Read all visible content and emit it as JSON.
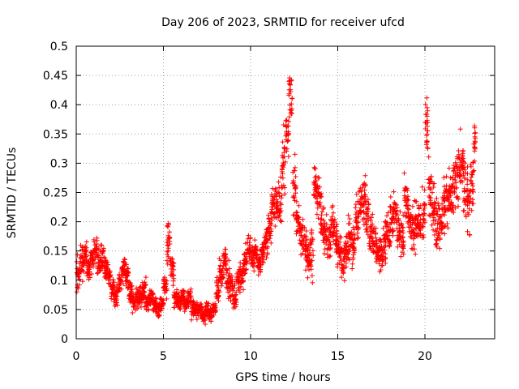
{
  "chart_data": {
    "type": "scatter",
    "title": "Day 206 of 2023, SRMTID for receiver ufcd",
    "xlabel": "GPS time / hours",
    "ylabel": "SRMTID / TECUs",
    "xlim": [
      0,
      24.0
    ],
    "ylim": [
      0,
      0.5
    ],
    "xticks": [
      0,
      5,
      10,
      15,
      20
    ],
    "xtick_labels": [
      "0",
      "5",
      "10",
      "15",
      "20"
    ],
    "yticks": [
      0,
      0.05,
      0.1,
      0.15,
      0.2,
      0.25,
      0.3,
      0.35,
      0.4,
      0.45,
      0.5
    ],
    "ytick_labels": [
      "0",
      "0.05",
      "0.1",
      "0.15",
      "0.2",
      "0.25",
      "0.3",
      "0.35",
      "0.4",
      "0.45",
      "0.5"
    ],
    "grid": true,
    "marker": "plus",
    "color": "#ff0000",
    "series": [
      {
        "name": "SRMTID",
        "x": [
          0.0,
          0.2,
          0.4,
          0.6,
          0.8,
          1.0,
          1.2,
          1.4,
          1.6,
          1.8,
          2.0,
          2.2,
          2.4,
          2.6,
          2.8,
          3.0,
          3.2,
          3.4,
          3.6,
          3.8,
          4.0,
          4.2,
          4.4,
          4.6,
          4.8,
          5.0,
          5.2,
          5.4,
          5.6,
          5.8,
          6.0,
          6.2,
          6.4,
          6.6,
          6.8,
          7.0,
          7.2,
          7.4,
          7.6,
          7.8,
          8.0,
          8.2,
          8.4,
          8.6,
          8.8,
          9.0,
          9.2,
          9.4,
          9.6,
          9.8,
          10.0,
          10.2,
          10.4,
          10.6,
          10.8,
          11.0,
          11.2,
          11.4,
          11.6,
          11.8,
          12.0,
          12.2,
          12.4,
          12.6,
          12.8,
          13.0,
          13.2,
          13.4,
          13.6,
          13.8,
          14.0,
          14.2,
          14.4,
          14.6,
          14.8,
          15.0,
          15.2,
          15.4,
          15.6,
          15.8,
          16.0,
          16.2,
          16.4,
          16.6,
          16.8,
          17.0,
          17.2,
          17.4,
          17.6,
          17.8,
          18.0,
          18.2,
          18.4,
          18.6,
          18.8,
          19.0,
          19.2,
          19.4,
          19.6,
          19.8,
          20.0,
          20.2,
          20.4,
          20.6,
          20.8,
          21.0,
          21.2,
          21.4,
          21.6,
          21.8,
          22.0,
          22.2,
          22.4,
          22.6,
          22.8
        ],
        "y": [
          0.11,
          0.13,
          0.14,
          0.12,
          0.14,
          0.15,
          0.13,
          0.14,
          0.12,
          0.1,
          0.08,
          0.07,
          0.1,
          0.12,
          0.11,
          0.08,
          0.06,
          0.07,
          0.07,
          0.08,
          0.06,
          0.07,
          0.06,
          0.05,
          0.06,
          0.09,
          0.16,
          0.12,
          0.07,
          0.06,
          0.07,
          0.06,
          0.07,
          0.05,
          0.05,
          0.05,
          0.04,
          0.05,
          0.04,
          0.05,
          0.08,
          0.11,
          0.13,
          0.1,
          0.09,
          0.07,
          0.1,
          0.11,
          0.13,
          0.15,
          0.14,
          0.15,
          0.13,
          0.15,
          0.17,
          0.19,
          0.22,
          0.23,
          0.24,
          0.3,
          0.35,
          0.41,
          0.26,
          0.2,
          0.18,
          0.16,
          0.14,
          0.15,
          0.26,
          0.24,
          0.2,
          0.18,
          0.16,
          0.2,
          0.17,
          0.15,
          0.13,
          0.15,
          0.17,
          0.16,
          0.2,
          0.23,
          0.24,
          0.21,
          0.18,
          0.16,
          0.15,
          0.14,
          0.17,
          0.18,
          0.2,
          0.22,
          0.19,
          0.17,
          0.25,
          0.21,
          0.18,
          0.19,
          0.2,
          0.22,
          0.36,
          0.25,
          0.22,
          0.2,
          0.19,
          0.22,
          0.24,
          0.25,
          0.26,
          0.28,
          0.3,
          0.26,
          0.24,
          0.27,
          0.33
        ],
        "spread": [
          0.04,
          0.04,
          0.04,
          0.03,
          0.03,
          0.03,
          0.03,
          0.03,
          0.03,
          0.03,
          0.03,
          0.03,
          0.03,
          0.03,
          0.03,
          0.03,
          0.02,
          0.03,
          0.03,
          0.03,
          0.02,
          0.02,
          0.02,
          0.02,
          0.02,
          0.03,
          0.06,
          0.04,
          0.02,
          0.02,
          0.02,
          0.02,
          0.02,
          0.02,
          0.02,
          0.02,
          0.02,
          0.02,
          0.02,
          0.02,
          0.03,
          0.04,
          0.04,
          0.04,
          0.03,
          0.03,
          0.03,
          0.03,
          0.03,
          0.03,
          0.03,
          0.03,
          0.03,
          0.03,
          0.04,
          0.04,
          0.05,
          0.05,
          0.06,
          0.07,
          0.08,
          0.06,
          0.07,
          0.05,
          0.05,
          0.05,
          0.05,
          0.05,
          0.05,
          0.05,
          0.06,
          0.05,
          0.05,
          0.05,
          0.05,
          0.04,
          0.04,
          0.04,
          0.05,
          0.05,
          0.05,
          0.05,
          0.05,
          0.05,
          0.05,
          0.04,
          0.04,
          0.04,
          0.05,
          0.05,
          0.05,
          0.05,
          0.05,
          0.05,
          0.06,
          0.05,
          0.05,
          0.06,
          0.06,
          0.06,
          0.08,
          0.07,
          0.06,
          0.06,
          0.06,
          0.06,
          0.06,
          0.06,
          0.06,
          0.07,
          0.07,
          0.07,
          0.07,
          0.07,
          0.07
        ]
      }
    ]
  }
}
